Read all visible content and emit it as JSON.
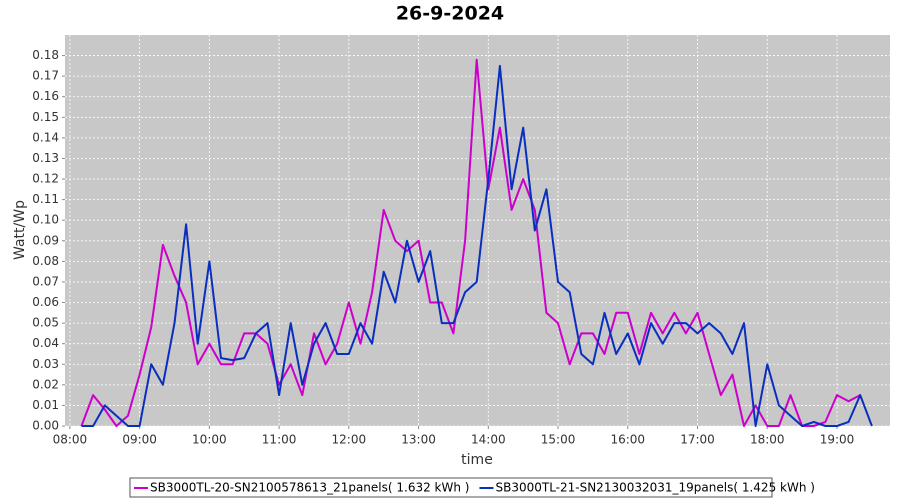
{
  "chart_data": {
    "type": "line",
    "title": "26-9-2024",
    "x_label": "time",
    "y_label": "Watt/Wp",
    "x": [
      8,
      8.1667,
      8.3333,
      8.5,
      8.6667,
      8.8333,
      9,
      9.1667,
      9.3333,
      9.5,
      9.6667,
      9.8333,
      10,
      10.1667,
      10.3333,
      10.5,
      10.6667,
      10.8333,
      11,
      11.1667,
      11.3333,
      11.5,
      11.6667,
      11.8333,
      12,
      12.1667,
      12.3333,
      12.5,
      12.6667,
      12.8333,
      13,
      13.1667,
      13.3333,
      13.5,
      13.6667,
      13.8333,
      14,
      14.1667,
      14.3333,
      14.5,
      14.6667,
      14.8333,
      15,
      15.1667,
      15.3333,
      15.5,
      15.6667,
      15.8333,
      16,
      16.1667,
      16.3333,
      16.5,
      16.6667,
      16.8333,
      17,
      17.1667,
      17.3333,
      17.5,
      17.6667,
      17.8333,
      18,
      18.1667,
      18.3333,
      18.5,
      18.6667,
      18.8333,
      19,
      19.1667,
      19.3333,
      19.5
    ],
    "series": [
      {
        "name": "SB3000TL-20-SN2100578613_21panels( 1.632 kWh )",
        "color": "#cc00cc",
        "values": [
          null,
          0,
          0.015,
          0.008,
          0,
          0.005,
          0.025,
          0.048,
          0.088,
          0.073,
          0.06,
          0.03,
          0.04,
          0.03,
          0.03,
          0.045,
          0.045,
          0.04,
          0.02,
          0.03,
          0.015,
          0.045,
          0.03,
          0.04,
          0.06,
          0.04,
          0.065,
          0.105,
          0.09,
          0.085,
          0.09,
          0.06,
          0.06,
          0.045,
          0.09,
          0.178,
          0.115,
          0.145,
          0.105,
          0.12,
          0.105,
          0.055,
          0.05,
          0.03,
          0.045,
          0.045,
          0.035,
          0.055,
          0.055,
          0.035,
          0.055,
          0.045,
          0.055,
          0.045,
          0.055,
          0.035,
          0.015,
          0.025,
          0,
          0.01,
          0,
          0,
          0.015,
          0,
          0,
          0.002,
          0.015,
          0.012,
          0.015,
          null
        ]
      },
      {
        "name": "SB3000TL-21-SN2130032031_19panels( 1.425 kWh )",
        "color": "#0a2fbf",
        "values": [
          null,
          0,
          0,
          0.01,
          0.005,
          0,
          0,
          0.03,
          0.02,
          0.05,
          0.098,
          0.04,
          0.08,
          0.033,
          0.032,
          0.033,
          0.045,
          0.05,
          0.015,
          0.05,
          0.02,
          0.04,
          0.05,
          0.035,
          0.035,
          0.05,
          0.04,
          0.075,
          0.06,
          0.09,
          0.07,
          0.085,
          0.05,
          0.05,
          0.065,
          0.07,
          0.12,
          0.175,
          0.115,
          0.145,
          0.095,
          0.115,
          0.07,
          0.065,
          0.035,
          0.03,
          0.055,
          0.035,
          0.045,
          0.03,
          0.05,
          0.04,
          0.05,
          0.05,
          0.045,
          0.05,
          0.045,
          0.035,
          0.05,
          0,
          0.03,
          0.01,
          0.005,
          0,
          0.002,
          0,
          0,
          0.002,
          0.015,
          0
        ]
      }
    ],
    "xlim": [
      7.93,
      19.76
    ],
    "xticks": [
      {
        "value": 8,
        "label": "08:00"
      },
      {
        "value": 9,
        "label": "09:00"
      },
      {
        "value": 10,
        "label": "10:00"
      },
      {
        "value": 11,
        "label": "11:00"
      },
      {
        "value": 12,
        "label": "12:00"
      },
      {
        "value": 13,
        "label": "13:00"
      },
      {
        "value": 14,
        "label": "14:00"
      },
      {
        "value": 15,
        "label": "15:00"
      },
      {
        "value": 16,
        "label": "16:00"
      },
      {
        "value": 17,
        "label": "17:00"
      },
      {
        "value": 18,
        "label": "18:00"
      },
      {
        "value": 19,
        "label": "19:00"
      }
    ],
    "ylim": [
      0,
      0.19
    ],
    "yticks": [
      {
        "value": 0,
        "label": "0.00"
      },
      {
        "value": 0.01,
        "label": "0.01"
      },
      {
        "value": 0.02,
        "label": "0.02"
      },
      {
        "value": 0.03,
        "label": "0.03"
      },
      {
        "value": 0.04,
        "label": "0.04"
      },
      {
        "value": 0.05,
        "label": "0.05"
      },
      {
        "value": 0.06,
        "label": "0.06"
      },
      {
        "value": 0.07,
        "label": "0.07"
      },
      {
        "value": 0.08,
        "label": "0.08"
      },
      {
        "value": 0.09,
        "label": "0.09"
      },
      {
        "value": 0.1,
        "label": "0.10"
      },
      {
        "value": 0.11,
        "label": "0.11"
      },
      {
        "value": 0.12,
        "label": "0.12"
      },
      {
        "value": 0.13,
        "label": "0.13"
      },
      {
        "value": 0.14,
        "label": "0.14"
      },
      {
        "value": 0.15,
        "label": "0.15"
      },
      {
        "value": 0.16,
        "label": "0.16"
      },
      {
        "value": 0.17,
        "label": "0.17"
      },
      {
        "value": 0.18,
        "label": "0.18"
      }
    ],
    "grid": true,
    "legend": "bottom"
  }
}
